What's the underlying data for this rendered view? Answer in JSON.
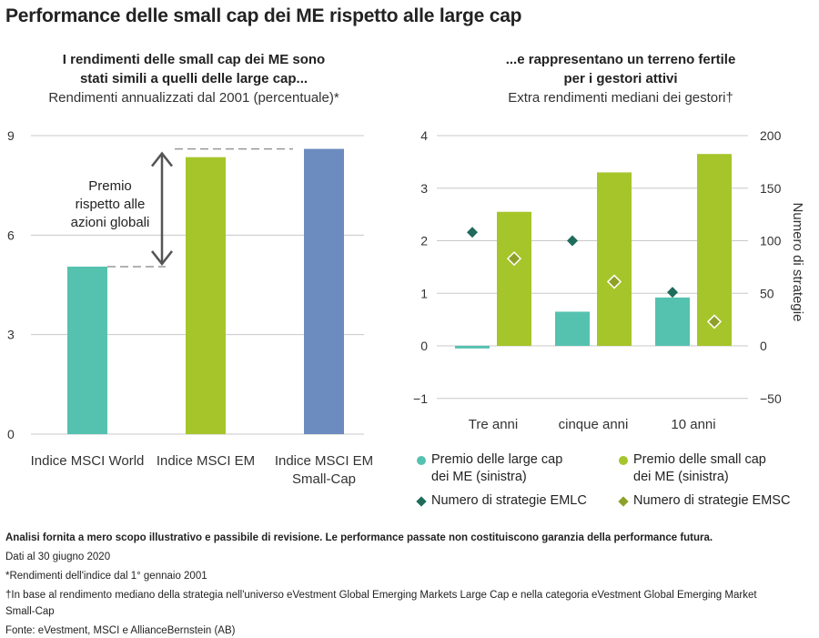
{
  "title": "Performance delle small cap dei ME rispetto alle large cap",
  "left": {
    "heading_line1": "I rendimenti delle small cap dei ME sono",
    "heading_line2": "stati simili a quelli delle large cap...",
    "subtitle": "Rendimenti annualizzati dal 2001 (percentuale)*",
    "annotation": [
      "Premio",
      "rispetto alle",
      "azioni globali"
    ]
  },
  "right": {
    "heading_line1": "...e rappresentano un terreno fertile",
    "heading_line2": "per i gestori attivi",
    "subtitle": "Extra rendimenti mediani dei gestori†",
    "right_axis_label": "Numero di strategie"
  },
  "colors": {
    "teal": "#55C2B0",
    "green": "#A6C52A",
    "blue": "#6C8BBF",
    "dark_teal": "#1F6B5C",
    "olive": "#8FA028",
    "grid": "#c8c8c8",
    "dash": "#999999"
  },
  "chart_data": [
    {
      "type": "bar",
      "title": "I rendimenti delle small cap dei ME sono stati simili a quelli delle large cap...",
      "subtitle": "Rendimenti annualizzati dal 2001 (percentuale)*",
      "categories": [
        "Indice MSCI World",
        "Indice MSCI EM",
        "Indice MSCI EM Small-Cap"
      ],
      "category_lines": [
        [
          "Indice MSCI World"
        ],
        [
          "Indice MSCI EM"
        ],
        [
          "Indice MSCI EM",
          "Small-Cap"
        ]
      ],
      "values": [
        5.05,
        8.35,
        8.6
      ],
      "bar_colors": [
        "#55C2B0",
        "#A6C52A",
        "#6C8BBF"
      ],
      "ylim": [
        0,
        9
      ],
      "yticks": [
        0,
        3,
        6,
        9
      ],
      "ytick_labels": [
        "0",
        "3",
        "6",
        "9"
      ],
      "grid": true
    },
    {
      "type": "bar",
      "title": "...e rappresentano un terreno fertile per i gestori attivi",
      "subtitle": "Extra rendimenti mediani dei gestori†",
      "categories": [
        "Tre anni",
        "cinque anni",
        "10 anni"
      ],
      "series": [
        {
          "name": "Premio delle large cap dei ME (sinistra)",
          "legend_lines": [
            "Premio delle large cap",
            "dei ME (sinistra)"
          ],
          "axis": "left",
          "marker": "bar",
          "color": "#55C2B0",
          "values": [
            -0.05,
            0.65,
            0.92
          ]
        },
        {
          "name": "Premio delle small cap dei ME (sinistra)",
          "legend_lines": [
            "Premio delle small cap",
            "dei ME (sinistra)"
          ],
          "axis": "left",
          "marker": "bar",
          "color": "#A6C52A",
          "values": [
            2.55,
            3.3,
            3.65
          ]
        },
        {
          "name": "Numero di strategie EMLC",
          "legend_lines": [
            "Numero di strategie EMLC"
          ],
          "axis": "right",
          "marker": "diamond",
          "color": "#1F6B5C",
          "values": [
            108,
            100,
            51
          ]
        },
        {
          "name": "Numero di strategie EMSC",
          "legend_lines": [
            "Numero di strategie EMSC"
          ],
          "axis": "right",
          "marker": "diamond-outline",
          "color": "#8FA028",
          "values": [
            83,
            61,
            23
          ]
        }
      ],
      "ylim": [
        -1,
        4
      ],
      "yticks": [
        -1,
        0,
        1,
        2,
        3,
        4
      ],
      "ytick_labels": [
        "−1",
        "0",
        "1",
        "2",
        "3",
        "4"
      ],
      "y2lim": [
        -50,
        200
      ],
      "y2ticks": [
        -50,
        0,
        50,
        100,
        150,
        200
      ],
      "y2tick_labels": [
        "−50",
        "0",
        "50",
        "100",
        "150",
        "200"
      ],
      "y2label": "Numero di strategie",
      "grid": true
    }
  ],
  "footer": {
    "disclaimer": "Analisi fornita a mero scopo illustrativo e passibile di revisione. Le performance passate non costituiscono garanzia della performance futura.",
    "date": "Dati al 30 giugno 2020",
    "note1": "*Rendimenti dell'indice dal 1° gennaio 2001",
    "note2_line1": "†In base al rendimento mediano della strategia nell'universo eVestment Global Emerging Markets Large Cap e nella categoria eVestment Global Emerging Market",
    "note2_line2": "Small-Cap",
    "source": "Fonte: eVestment, MSCI e AllianceBernstein (AB)"
  }
}
